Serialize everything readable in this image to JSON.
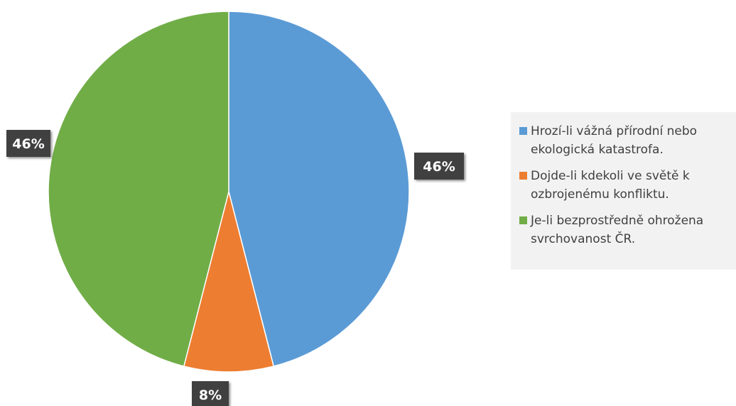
{
  "chart_data": {
    "type": "pie",
    "title": "",
    "slices": [
      {
        "label": "Hrozí-li vážná přírodní nebo ekologická katastrofa.",
        "value": 46,
        "display": "46%",
        "color": "#5b9bd5"
      },
      {
        "label": "Dojde-li kdekoli ve světě k ozbrojenému konfliktu.",
        "value": 8,
        "display": "8%",
        "color": "#ed7d31"
      },
      {
        "label": "Je-li bezprostředně ohrožena svrchovanost ČR.",
        "value": 46,
        "display": "46%",
        "color": "#70ad47"
      }
    ],
    "legend_position": "right"
  }
}
